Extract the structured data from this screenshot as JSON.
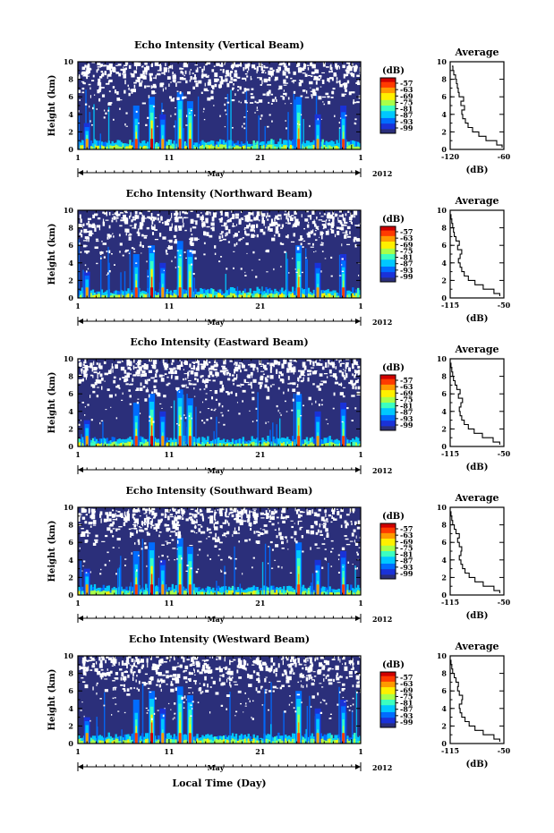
{
  "figure": {
    "x_label": "Local Time (Day)",
    "month_label": "May",
    "year_label": "2012"
  },
  "colorbar": {
    "unit": "(dB)",
    "ticks": [
      "-57",
      "-63",
      "-69",
      "-75",
      "-81",
      "-87",
      "-93",
      "-99"
    ],
    "colors": [
      "#cf0000",
      "#ff3a00",
      "#ff9a00",
      "#fff000",
      "#a8ff4a",
      "#3cffc0",
      "#00c8ff",
      "#006cff",
      "#1a32d8",
      "#2b2f7a"
    ]
  },
  "chart_data": [
    {
      "type": "heatmap",
      "title": "Echo Intensity (Vertical Beam)",
      "ylabel": "Height (km)",
      "ylim": [
        0,
        10
      ],
      "yticks": [
        "0",
        "2",
        "4",
        "6",
        "8",
        "10"
      ],
      "xlim": [
        1,
        32
      ],
      "xticks": [
        "1",
        "11",
        "21",
        "1"
      ],
      "zlim": [
        -99,
        -57
      ],
      "plumes": [
        {
          "day": 2.0,
          "height": 3,
          "strength": 0.55
        },
        {
          "day": 7.4,
          "height": 5,
          "strength": 0.7
        },
        {
          "day": 9.1,
          "height": 6,
          "strength": 1.0
        },
        {
          "day": 10.3,
          "height": 4,
          "strength": 0.5
        },
        {
          "day": 12.2,
          "height": 6.5,
          "strength": 0.8
        },
        {
          "day": 13.3,
          "height": 5.5,
          "strength": 0.75
        },
        {
          "day": 25.2,
          "height": 6,
          "strength": 0.85
        },
        {
          "day": 27.3,
          "height": 4,
          "strength": 0.5
        },
        {
          "day": 30.1,
          "height": 5,
          "strength": 0.6
        }
      ],
      "profile": {
        "title": "Average",
        "xlabel": "(dB)",
        "xlim": [
          -120,
          -60
        ],
        "xticks": [
          "-120",
          "-60"
        ],
        "height_km": [
          0.2,
          0.5,
          1,
          1.5,
          2,
          2.5,
          3,
          3.5,
          4,
          4.5,
          5,
          5.5,
          6,
          6.5,
          7,
          7.5,
          8,
          8.5,
          9,
          9.5
        ],
        "db": [
          -62,
          -68,
          -80,
          -88,
          -95,
          -100,
          -103,
          -106,
          -107,
          -104,
          -108,
          -105,
          -110,
          -111,
          -112,
          -113,
          -114,
          -116,
          -117,
          -118
        ]
      }
    },
    {
      "type": "heatmap",
      "title": "Echo Intensity (Northward Beam)",
      "ylabel": "Height (km)",
      "ylim": [
        0,
        10
      ],
      "yticks": [
        "0",
        "2",
        "4",
        "6",
        "8",
        "10"
      ],
      "xlim": [
        1,
        32
      ],
      "xticks": [
        "1",
        "11",
        "21",
        "1"
      ],
      "zlim": [
        -99,
        -57
      ],
      "plumes": [
        {
          "day": 2.0,
          "height": 3,
          "strength": 0.5
        },
        {
          "day": 7.4,
          "height": 5,
          "strength": 0.7
        },
        {
          "day": 9.1,
          "height": 6,
          "strength": 1.0
        },
        {
          "day": 10.3,
          "height": 4,
          "strength": 0.5
        },
        {
          "day": 12.2,
          "height": 6.5,
          "strength": 0.8
        },
        {
          "day": 13.3,
          "height": 5.5,
          "strength": 0.75
        },
        {
          "day": 25.2,
          "height": 6,
          "strength": 0.85
        },
        {
          "day": 27.3,
          "height": 4,
          "strength": 0.5
        },
        {
          "day": 30.1,
          "height": 5,
          "strength": 0.6
        }
      ],
      "profile": {
        "title": "Average",
        "xlabel": "(dB)",
        "xlim": [
          -115,
          -50
        ],
        "xticks": [
          "-115",
          "-50"
        ],
        "height_km": [
          0.2,
          0.5,
          1,
          1.5,
          2,
          2.5,
          3,
          3.5,
          4,
          4.5,
          5,
          5.5,
          6,
          6.5,
          7,
          7.5,
          8,
          8.5,
          9,
          9.5
        ],
        "db": [
          -55,
          -62,
          -75,
          -85,
          -93,
          -98,
          -101,
          -103,
          -105,
          -103,
          -101,
          -106,
          -104,
          -108,
          -110,
          -111,
          -112,
          -113,
          -114,
          -115
        ]
      }
    },
    {
      "type": "heatmap",
      "title": "Echo Intensity (Eastward Beam)",
      "ylabel": "Height (km)",
      "ylim": [
        0,
        10
      ],
      "yticks": [
        "0",
        "2",
        "4",
        "6",
        "8",
        "10"
      ],
      "xlim": [
        1,
        32
      ],
      "xticks": [
        "1",
        "11",
        "21",
        "1"
      ],
      "zlim": [
        -99,
        -57
      ],
      "plumes": [
        {
          "day": 2.0,
          "height": 3,
          "strength": 0.5
        },
        {
          "day": 7.4,
          "height": 5,
          "strength": 0.7
        },
        {
          "day": 9.1,
          "height": 6,
          "strength": 1.0
        },
        {
          "day": 10.3,
          "height": 4,
          "strength": 0.5
        },
        {
          "day": 12.2,
          "height": 6.5,
          "strength": 0.8
        },
        {
          "day": 13.3,
          "height": 5.5,
          "strength": 0.75
        },
        {
          "day": 25.2,
          "height": 6,
          "strength": 0.85
        },
        {
          "day": 27.3,
          "height": 4,
          "strength": 0.5
        },
        {
          "day": 30.1,
          "height": 5,
          "strength": 0.6
        }
      ],
      "profile": {
        "title": "Average",
        "xlabel": "(dB)",
        "xlim": [
          -115,
          -50
        ],
        "xticks": [
          "-115",
          "-50"
        ],
        "height_km": [
          0.2,
          0.5,
          1,
          1.5,
          2,
          2.5,
          3,
          3.5,
          4,
          4.5,
          5,
          5.5,
          6,
          6.5,
          7,
          7.5,
          8,
          8.5,
          9,
          9.5
        ],
        "db": [
          -55,
          -63,
          -76,
          -86,
          -93,
          -98,
          -101,
          -103,
          -104,
          -102,
          -100,
          -105,
          -103,
          -107,
          -109,
          -111,
          -112,
          -113,
          -114,
          -115
        ]
      }
    },
    {
      "type": "heatmap",
      "title": "Echo Intensity (Southward Beam)",
      "ylabel": "Height (km)",
      "ylim": [
        0,
        10
      ],
      "yticks": [
        "0",
        "2",
        "4",
        "6",
        "8",
        "10"
      ],
      "xlim": [
        1,
        32
      ],
      "xticks": [
        "1",
        "11",
        "21",
        "1"
      ],
      "zlim": [
        -99,
        -57
      ],
      "plumes": [
        {
          "day": 2.0,
          "height": 3,
          "strength": 0.5
        },
        {
          "day": 7.4,
          "height": 5,
          "strength": 0.7
        },
        {
          "day": 9.1,
          "height": 6,
          "strength": 1.0
        },
        {
          "day": 10.3,
          "height": 4,
          "strength": 0.5
        },
        {
          "day": 12.2,
          "height": 6.5,
          "strength": 0.8
        },
        {
          "day": 13.3,
          "height": 5.5,
          "strength": 0.75
        },
        {
          "day": 25.2,
          "height": 6,
          "strength": 0.85
        },
        {
          "day": 27.3,
          "height": 4,
          "strength": 0.5
        },
        {
          "day": 30.1,
          "height": 5,
          "strength": 0.6
        }
      ],
      "profile": {
        "title": "Average",
        "xlabel": "(dB)",
        "xlim": [
          -115,
          -50
        ],
        "xticks": [
          "-115",
          "-50"
        ],
        "height_km": [
          0.2,
          0.5,
          1,
          1.5,
          2,
          2.5,
          3,
          3.5,
          4,
          4.5,
          5,
          5.5,
          6,
          6.5,
          7,
          7.5,
          8,
          8.5,
          9,
          9.5
        ],
        "db": [
          -55,
          -62,
          -75,
          -85,
          -92,
          -97,
          -100,
          -102,
          -104,
          -102,
          -101,
          -104,
          -106,
          -104,
          -108,
          -110,
          -112,
          -113,
          -114,
          -115
        ]
      }
    },
    {
      "type": "heatmap",
      "title": "Echo Intensity (Westward Beam)",
      "ylabel": "Height (km)",
      "ylim": [
        0,
        10
      ],
      "yticks": [
        "0",
        "2",
        "4",
        "6",
        "8",
        "10"
      ],
      "xlim": [
        1,
        32
      ],
      "xticks": [
        "1",
        "11",
        "21",
        "1"
      ],
      "zlim": [
        -99,
        -57
      ],
      "plumes": [
        {
          "day": 2.0,
          "height": 3,
          "strength": 0.5
        },
        {
          "day": 7.4,
          "height": 5,
          "strength": 0.7
        },
        {
          "day": 9.1,
          "height": 6,
          "strength": 1.0
        },
        {
          "day": 10.3,
          "height": 4,
          "strength": 0.5
        },
        {
          "day": 12.2,
          "height": 6.5,
          "strength": 0.8
        },
        {
          "day": 13.3,
          "height": 5.5,
          "strength": 0.75
        },
        {
          "day": 25.2,
          "height": 6,
          "strength": 0.85
        },
        {
          "day": 27.3,
          "height": 4,
          "strength": 0.5
        },
        {
          "day": 30.1,
          "height": 5,
          "strength": 0.6
        }
      ],
      "profile": {
        "title": "Average",
        "xlabel": "(dB)",
        "xlim": [
          -115,
          -50
        ],
        "xticks": [
          "-115",
          "-50"
        ],
        "height_km": [
          0.2,
          0.5,
          1,
          1.5,
          2,
          2.5,
          3,
          3.5,
          4,
          4.5,
          5,
          5.5,
          6,
          6.5,
          7,
          7.5,
          8,
          8.5,
          9,
          9.5
        ],
        "db": [
          -55,
          -62,
          -75,
          -85,
          -92,
          -97,
          -101,
          -103,
          -104,
          -101,
          -100,
          -104,
          -106,
          -105,
          -108,
          -110,
          -112,
          -113,
          -114,
          -115
        ]
      }
    }
  ]
}
